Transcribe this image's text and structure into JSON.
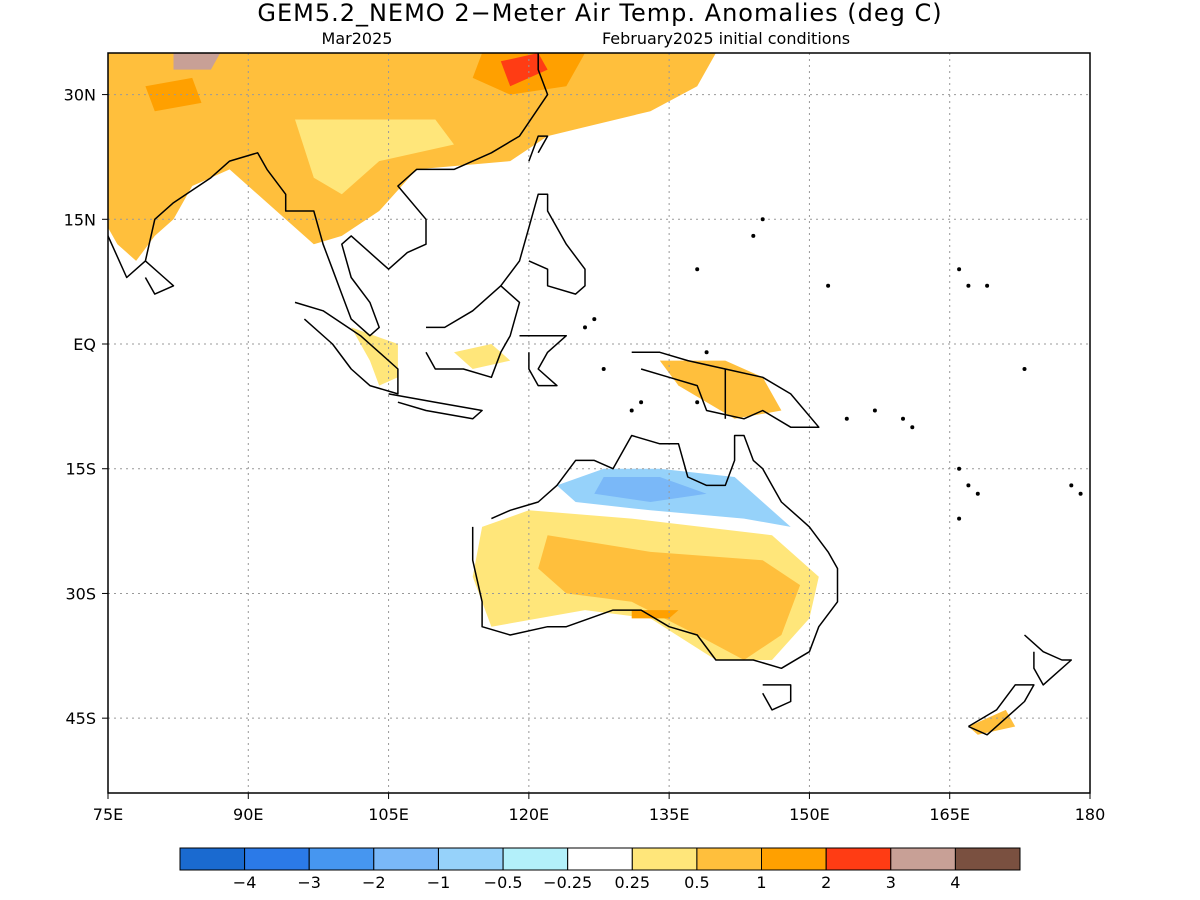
{
  "title": "GEM5.2_NEMO 2−Meter Air Temp. Anomalies (deg C)",
  "subtitle_left": "Mar2025",
  "subtitle_right": "February2025 initial conditions",
  "map": {
    "lon_range": [
      75,
      180
    ],
    "lat_range": [
      -54,
      35
    ],
    "lon_ticks": [
      {
        "value": 75,
        "label": "75E"
      },
      {
        "value": 90,
        "label": "90E"
      },
      {
        "value": 105,
        "label": "105E"
      },
      {
        "value": 120,
        "label": "120E"
      },
      {
        "value": 135,
        "label": "135E"
      },
      {
        "value": 150,
        "label": "150E"
      },
      {
        "value": 165,
        "label": "165E"
      },
      {
        "value": 180,
        "label": "180"
      }
    ],
    "lat_ticks": [
      {
        "value": 30,
        "label": "30N"
      },
      {
        "value": 15,
        "label": "15N"
      },
      {
        "value": 0,
        "label": "EQ"
      },
      {
        "value": -15,
        "label": "15S"
      },
      {
        "value": -30,
        "label": "30S"
      },
      {
        "value": -45,
        "label": "45S"
      }
    ],
    "grid": "dotted",
    "anomaly_regions": [
      {
        "name": "asia-warm",
        "level": 1,
        "points": [
          [
            75,
            35
          ],
          [
            140,
            35
          ],
          [
            138,
            31
          ],
          [
            133,
            28
          ],
          [
            122,
            25
          ],
          [
            118,
            22
          ],
          [
            108,
            21
          ],
          [
            104,
            16
          ],
          [
            100,
            13
          ],
          [
            97,
            12
          ],
          [
            94,
            15
          ],
          [
            91,
            18
          ],
          [
            88,
            21
          ],
          [
            84,
            19
          ],
          [
            82,
            15
          ],
          [
            80,
            13
          ],
          [
            78,
            10
          ],
          [
            76,
            12
          ],
          [
            75,
            14
          ]
        ]
      },
      {
        "name": "asia-moderate",
        "level": 0.5,
        "points": [
          [
            95,
            27
          ],
          [
            110,
            27
          ],
          [
            112,
            24
          ],
          [
            104,
            22
          ],
          [
            100,
            18
          ],
          [
            97,
            20
          ]
        ]
      },
      {
        "name": "tibet-hot",
        "level": 2,
        "points": [
          [
            79,
            31
          ],
          [
            84,
            32
          ],
          [
            85,
            29
          ],
          [
            80,
            28
          ]
        ]
      },
      {
        "name": "china-hot",
        "level": 2,
        "points": [
          [
            115,
            35
          ],
          [
            126,
            35
          ],
          [
            124,
            31
          ],
          [
            118,
            30
          ],
          [
            114,
            32
          ]
        ]
      },
      {
        "name": "china-red",
        "level": 3,
        "points": [
          [
            117,
            34
          ],
          [
            121,
            35
          ],
          [
            122,
            33
          ],
          [
            118,
            31
          ]
        ]
      },
      {
        "name": "mongolia-extreme",
        "level": 4,
        "points": [
          [
            82,
            35
          ],
          [
            87,
            35
          ],
          [
            86,
            33
          ],
          [
            82,
            33
          ]
        ]
      },
      {
        "name": "sumatra-mild",
        "level": 0.5,
        "points": [
          [
            101,
            2
          ],
          [
            106,
            0
          ],
          [
            106,
            -4
          ],
          [
            104,
            -5
          ],
          [
            103,
            -2
          ]
        ]
      },
      {
        "name": "borneo-mild",
        "level": 0.5,
        "points": [
          [
            112,
            -1
          ],
          [
            116,
            0
          ],
          [
            118,
            -2
          ],
          [
            114,
            -3
          ]
        ]
      },
      {
        "name": "newguinea-warm",
        "level": 1,
        "points": [
          [
            134,
            -2
          ],
          [
            141,
            -2
          ],
          [
            145,
            -4
          ],
          [
            147,
            -8
          ],
          [
            142,
            -9
          ],
          [
            136,
            -5
          ]
        ]
      },
      {
        "name": "australia-mild",
        "level": 0.5,
        "points": [
          [
            120,
            -20
          ],
          [
            131,
            -21
          ],
          [
            146,
            -23
          ],
          [
            151,
            -28
          ],
          [
            150,
            -33
          ],
          [
            146,
            -38
          ],
          [
            140,
            -38
          ],
          [
            133,
            -33
          ],
          [
            126,
            -32
          ],
          [
            116,
            -34
          ],
          [
            114,
            -28
          ],
          [
            115,
            -22
          ]
        ]
      },
      {
        "name": "australia-warm",
        "level": 1,
        "points": [
          [
            122,
            -23
          ],
          [
            133,
            -25
          ],
          [
            145,
            -26
          ],
          [
            149,
            -29
          ],
          [
            147,
            -35
          ],
          [
            143,
            -38
          ],
          [
            138,
            -35
          ],
          [
            131,
            -31
          ],
          [
            124,
            -30
          ],
          [
            121,
            -27
          ]
        ]
      },
      {
        "name": "australia-orange",
        "level": 2,
        "points": [
          [
            131,
            -32
          ],
          [
            136,
            -32
          ],
          [
            135,
            -33
          ],
          [
            131,
            -33
          ]
        ]
      },
      {
        "name": "australia-north-cool",
        "level": -0.5,
        "points": [
          [
            123,
            -17
          ],
          [
            128,
            -15
          ],
          [
            134,
            -15
          ],
          [
            142,
            -16
          ],
          [
            145,
            -19
          ],
          [
            148,
            -22
          ],
          [
            143,
            -21
          ],
          [
            133,
            -20
          ],
          [
            125,
            -19
          ]
        ]
      },
      {
        "name": "australia-north-cooler",
        "level": -1,
        "points": [
          [
            128,
            -16
          ],
          [
            134,
            -16
          ],
          [
            139,
            -18
          ],
          [
            133,
            -19
          ],
          [
            127,
            -18
          ]
        ]
      },
      {
        "name": "newzealand-warm",
        "level": 1,
        "points": [
          [
            167,
            -46
          ],
          [
            171,
            -44
          ],
          [
            172,
            -46
          ],
          [
            168,
            -47
          ]
        ]
      }
    ],
    "coastlines": [
      [
        [
          75,
          21
        ],
        [
          72,
          22
        ],
        [
          73,
          18
        ],
        [
          75,
          13
        ],
        [
          77,
          8
        ],
        [
          79,
          10
        ],
        [
          80,
          15
        ],
        [
          82,
          17
        ],
        [
          86,
          20
        ],
        [
          88,
          22
        ],
        [
          91,
          23
        ],
        [
          92,
          21
        ],
        [
          94,
          18
        ],
        [
          94,
          16
        ],
        [
          97,
          16
        ],
        [
          98,
          12
        ],
        [
          99,
          9
        ],
        [
          100,
          6
        ],
        [
          101,
          3
        ],
        [
          103,
          1
        ],
        [
          104,
          2
        ],
        [
          103,
          5
        ],
        [
          101,
          8
        ],
        [
          100,
          12
        ],
        [
          101,
          13
        ],
        [
          103,
          11
        ],
        [
          105,
          9
        ],
        [
          107,
          11
        ],
        [
          109,
          12
        ],
        [
          109,
          15
        ],
        [
          106,
          19
        ],
        [
          108,
          21
        ],
        [
          112,
          21
        ],
        [
          116,
          23
        ],
        [
          119,
          25
        ],
        [
          122,
          30
        ],
        [
          121,
          33
        ],
        [
          121,
          35
        ]
      ],
      [
        [
          79,
          10
        ],
        [
          81,
          8
        ],
        [
          82,
          7
        ],
        [
          80,
          6
        ],
        [
          79,
          8
        ]
      ],
      [
        [
          95,
          5
        ],
        [
          98,
          4
        ],
        [
          102,
          1
        ],
        [
          104,
          -1
        ],
        [
          106,
          -3
        ],
        [
          106,
          -6
        ],
        [
          103,
          -5
        ],
        [
          101,
          -3
        ],
        [
          99,
          0
        ],
        [
          96,
          3
        ]
      ],
      [
        [
          105,
          -6
        ],
        [
          110,
          -7
        ],
        [
          115,
          -8
        ],
        [
          114,
          -9
        ],
        [
          109,
          -8
        ],
        [
          106,
          -7
        ]
      ],
      [
        [
          109,
          2
        ],
        [
          111,
          2
        ],
        [
          114,
          4
        ],
        [
          117,
          7
        ],
        [
          119,
          5
        ],
        [
          118,
          1
        ],
        [
          117,
          -1
        ],
        [
          116,
          -4
        ],
        [
          113,
          -3
        ],
        [
          110,
          -3
        ],
        [
          109,
          -1
        ]
      ],
      [
        [
          119,
          1
        ],
        [
          121,
          1
        ],
        [
          124,
          1
        ],
        [
          122,
          -1
        ],
        [
          121,
          -3
        ],
        [
          123,
          -5
        ],
        [
          121,
          -5
        ],
        [
          120,
          -3
        ],
        [
          120,
          -1
        ]
      ],
      [
        [
          117,
          7
        ],
        [
          119,
          10
        ],
        [
          120,
          14
        ],
        [
          121,
          18
        ],
        [
          122,
          18
        ],
        [
          122,
          16
        ],
        [
          124,
          12
        ],
        [
          126,
          9
        ],
        [
          126,
          7
        ],
        [
          125,
          6
        ],
        [
          122,
          7
        ],
        [
          122,
          9
        ],
        [
          120,
          10
        ]
      ],
      [
        [
          120,
          22
        ],
        [
          121,
          25
        ],
        [
          122,
          25
        ],
        [
          121,
          23
        ]
      ],
      [
        [
          131,
          -1
        ],
        [
          134,
          -1
        ],
        [
          137,
          -2
        ],
        [
          141,
          -3
        ],
        [
          145,
          -4
        ],
        [
          148,
          -6
        ],
        [
          151,
          -10
        ],
        [
          148,
          -10
        ],
        [
          145,
          -8
        ],
        [
          143,
          -9
        ],
        [
          139,
          -8
        ],
        [
          138,
          -5
        ],
        [
          135,
          -4
        ],
        [
          132,
          -3
        ]
      ],
      [
        [
          141,
          -3
        ],
        [
          141,
          -9
        ]
      ],
      [
        [
          114,
          -22
        ],
        [
          114,
          -26
        ],
        [
          115,
          -31
        ],
        [
          115,
          -34
        ],
        [
          118,
          -35
        ],
        [
          122,
          -34
        ],
        [
          124,
          -34
        ],
        [
          129,
          -32
        ],
        [
          132,
          -32
        ],
        [
          135,
          -34
        ],
        [
          138,
          -35
        ],
        [
          140,
          -38
        ],
        [
          144,
          -38
        ],
        [
          147,
          -39
        ],
        [
          150,
          -37
        ],
        [
          151,
          -34
        ],
        [
          153,
          -31
        ],
        [
          153,
          -27
        ],
        [
          152,
          -25
        ],
        [
          150,
          -22
        ],
        [
          149,
          -21
        ],
        [
          147,
          -19
        ],
        [
          146,
          -17
        ],
        [
          145,
          -15
        ],
        [
          144,
          -14
        ],
        [
          143,
          -11
        ],
        [
          142,
          -11
        ],
        [
          142,
          -14
        ],
        [
          141,
          -17
        ],
        [
          139,
          -17
        ],
        [
          137,
          -16
        ],
        [
          136,
          -12
        ],
        [
          134,
          -12
        ],
        [
          131,
          -11
        ],
        [
          129,
          -15
        ],
        [
          127,
          -14
        ],
        [
          125,
          -14
        ],
        [
          123,
          -17
        ],
        [
          121,
          -19
        ],
        [
          118,
          -20
        ],
        [
          116,
          -21
        ]
      ],
      [
        [
          145,
          -41
        ],
        [
          148,
          -41
        ],
        [
          148,
          -43
        ],
        [
          146,
          -44
        ],
        [
          145,
          -42
        ]
      ],
      [
        [
          167,
          -46
        ],
        [
          170,
          -44
        ],
        [
          172,
          -41
        ],
        [
          174,
          -41
        ],
        [
          173,
          -43
        ],
        [
          171,
          -45
        ],
        [
          169,
          -47
        ],
        [
          167,
          -46
        ]
      ],
      [
        [
          173,
          -35
        ],
        [
          175,
          -37
        ],
        [
          177,
          -38
        ],
        [
          178,
          -38
        ],
        [
          176,
          -40
        ],
        [
          175,
          -41
        ],
        [
          174,
          -39
        ],
        [
          174,
          -37
        ]
      ]
    ],
    "islands": [
      [
        138,
        -7
      ],
      [
        154,
        -9
      ],
      [
        157,
        -8
      ],
      [
        160,
        -9
      ],
      [
        161,
        -10
      ],
      [
        166,
        -15
      ],
      [
        167,
        -17
      ],
      [
        168,
        -18
      ],
      [
        166,
        -21
      ],
      [
        178,
        -17
      ],
      [
        179,
        -18
      ],
      [
        173,
        -3
      ],
      [
        167,
        7
      ],
      [
        169,
        7
      ],
      [
        166,
        9
      ],
      [
        152,
        7
      ],
      [
        138,
        9
      ],
      [
        145,
        15
      ],
      [
        144,
        13
      ],
      [
        139,
        -1
      ],
      [
        131,
        -8
      ],
      [
        132,
        -7
      ],
      [
        128,
        -3
      ],
      [
        126,
        2
      ],
      [
        127,
        3
      ]
    ]
  },
  "colorbar": {
    "colors": [
      "#1a6ad0",
      "#2b7ae8",
      "#4696f0",
      "#7ab8f8",
      "#96d2fa",
      "#b3f0fa",
      "#ffffff",
      "#ffe67a",
      "#ffbf3c",
      "#ffa000",
      "#ff3c14",
      "#c8a096",
      "#7a5040"
    ],
    "labels": [
      "−4",
      "−3",
      "−2",
      "−1",
      "−0.5",
      "−0.25",
      "0.25",
      "0.5",
      "1",
      "2",
      "3",
      "4"
    ]
  }
}
